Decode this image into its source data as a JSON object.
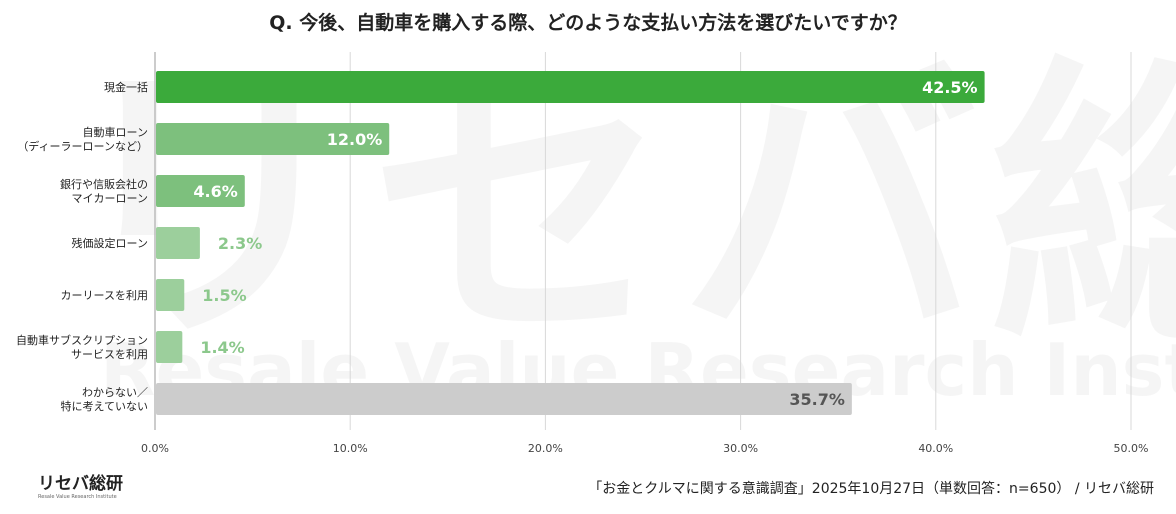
{
  "title": "Q. 今後、自動車を購入する際、どのような支払い方法を選びたいですか？",
  "footer": {
    "source": "「お金とクルマに関する意識調査」2025年10月27日（単数回答：n=650） / リセバ総研",
    "logo_main": "リセバ総研",
    "logo_sub": "Resale Value Research Institute"
  },
  "watermark": {
    "main": "リセバ総研",
    "sub": "Resale Value Research Institute"
  },
  "colors": {
    "bar_dark": "#3BAA3B",
    "bar_mid": "#7DC07D",
    "bar_light": "#9CCF9C",
    "bar_gray": "#CCCCCC",
    "label_outside": "#8CC88C",
    "label_inside": "#FFFFFF",
    "label_gray": "#555555",
    "grid": "#D8D8D8",
    "axis": "#BBBBBB"
  },
  "chart_data": {
    "type": "bar",
    "orientation": "horizontal",
    "title": "Q. 今後、自動車を購入する際、どのような支払い方法を選びたいですか？",
    "categories": [
      [
        "現金一括"
      ],
      [
        "自動車ローン",
        "（ディーラーローンなど）"
      ],
      [
        "銀行や信販会社の",
        "マイカーローン"
      ],
      [
        "残価設定ローン"
      ],
      [
        "カーリースを利用"
      ],
      [
        "自動車サブスクリプション",
        "サービスを利用"
      ],
      [
        "わからない／",
        "特に考えていない"
      ]
    ],
    "values": [
      42.5,
      12.0,
      4.6,
      2.3,
      1.5,
      1.4,
      35.7
    ],
    "value_labels": [
      "42.5%",
      "12.0%",
      "4.6%",
      "2.3%",
      "1.5%",
      "1.4%",
      "35.7%"
    ],
    "bar_styles": [
      "dark",
      "mid",
      "mid",
      "light",
      "light",
      "light",
      "gray"
    ],
    "label_positions": [
      "inside",
      "inside",
      "inside",
      "outside",
      "outside",
      "outside",
      "inside"
    ],
    "xlim": [
      0,
      50
    ],
    "xticks": [
      0,
      10,
      20,
      30,
      40,
      50
    ],
    "xtick_labels": [
      "0.0%",
      "10.0%",
      "20.0%",
      "30.0%",
      "40.0%",
      "50.0%"
    ],
    "xlabel": "",
    "ylabel": "",
    "grid": true,
    "legend": "none"
  }
}
